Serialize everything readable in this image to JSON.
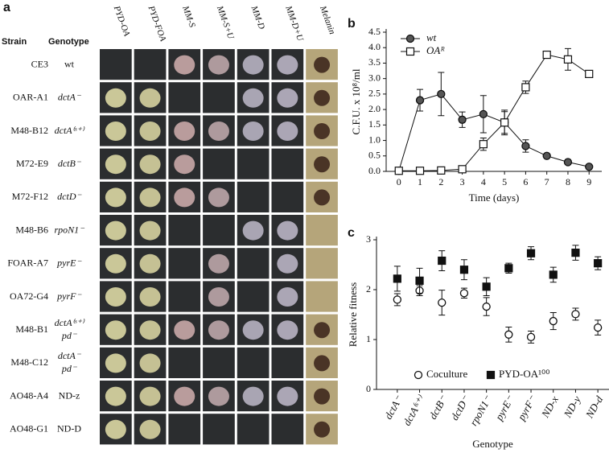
{
  "panel_a": {
    "label": "a",
    "header": {
      "strain": "Strain",
      "genotype": "Genotype"
    },
    "columns": [
      "PYD-OA",
      "PYD-FOA",
      "MM-S",
      "MM-S+U",
      "MM-D",
      "MM-D+U",
      "Melanin"
    ],
    "rows": [
      {
        "strain": "CE3",
        "genotype": [
          "wt"
        ]
      },
      {
        "strain": "OAR-A1",
        "genotype": [
          "dctA⁻"
        ]
      },
      {
        "strain": "M48-B12",
        "genotype": [
          "dctA⁽ˢ⁺⁾"
        ]
      },
      {
        "strain": "M72-E9",
        "genotype": [
          "dctB⁻"
        ]
      },
      {
        "strain": "M72-F12",
        "genotype": [
          "dctD⁻"
        ]
      },
      {
        "strain": "M48-B6",
        "genotype": [
          "rpoN1⁻"
        ]
      },
      {
        "strain": "FOAR-A7",
        "genotype": [
          "pyrE⁻"
        ]
      },
      {
        "strain": "OA72-G4",
        "genotype": [
          "pyrF⁻"
        ]
      },
      {
        "strain": "M48-B1",
        "genotype": [
          "dctA⁽ˢ⁺⁾",
          "pd⁻"
        ]
      },
      {
        "strain": "M48-C12",
        "genotype": [
          "dctA⁻",
          "pd⁻"
        ]
      },
      {
        "strain": "AO48-A4",
        "genotype": [
          "ND-z"
        ]
      },
      {
        "strain": "AO48-G1",
        "genotype": [
          "ND-D"
        ]
      }
    ]
  },
  "chart_data": [
    {
      "type": "line",
      "label": "b",
      "ylabel": "C.F.U. x 10⁸/ml",
      "xlabel": "Time (days)",
      "x": [
        0,
        1,
        2,
        3,
        4,
        5,
        6,
        7,
        8,
        9
      ],
      "xlim": [
        -0.6,
        9.6
      ],
      "xticks": [
        0,
        1,
        2,
        3,
        4,
        5,
        6,
        7,
        8,
        9
      ],
      "ylim": [
        0,
        4.5
      ],
      "yticks": [
        {
          "value": 0,
          "label": "0.0"
        },
        0.5,
        {
          "value": 1,
          "label": "1.0"
        },
        1.5,
        {
          "value": 2,
          "label": "2.0"
        },
        2.5,
        {
          "value": 3,
          "label": "3.0"
        },
        3.5,
        {
          "value": 4,
          "label": "4.0"
        },
        4.5
      ],
      "series": [
        {
          "name": "wt",
          "color": "#555555",
          "marker": "circle",
          "values": [
            0.02,
            2.3,
            2.5,
            1.67,
            1.85,
            1.58,
            0.82,
            0.5,
            0.3,
            0.15
          ],
          "errors": [
            0,
            0.35,
            0.7,
            0.25,
            0.6,
            0.35,
            0.2,
            0.05,
            0.08,
            0.05
          ]
        },
        {
          "name": "OAᴿ",
          "color": "#ffffff",
          "marker": "square",
          "values": [
            0.02,
            0.02,
            0.03,
            0.07,
            0.88,
            1.58,
            2.72,
            3.77,
            3.62,
            3.15
          ],
          "errors": [
            0,
            0,
            0,
            0.05,
            0.2,
            0.4,
            0.2,
            0.05,
            0.35,
            0.1
          ]
        }
      ]
    },
    {
      "type": "scatter",
      "label": "c",
      "ylabel": "Relative fitness",
      "xlabel": "Genotype",
      "categories": [
        "dctA⁻",
        "dctA⁽ˢ⁺⁾",
        "dctB⁻",
        "dctD⁻",
        "rpoN1⁻",
        "pyrE⁻",
        "pyrF⁻",
        "ND-x",
        "ND-y",
        "ND-d"
      ],
      "ylim": [
        0,
        3
      ],
      "yticks": [
        0,
        1,
        2,
        3
      ],
      "series": [
        {
          "name": "Coculture",
          "color": "#ffffff",
          "marker": "circle",
          "values": [
            1.8,
            1.98,
            1.74,
            1.93,
            1.66,
            1.1,
            1.05,
            1.37,
            1.51,
            1.24
          ],
          "errors": [
            0.12,
            0.1,
            0.25,
            0.1,
            0.18,
            0.15,
            0.12,
            0.17,
            0.12,
            0.15
          ]
        },
        {
          "name": "PYD-OA¹⁰⁰",
          "color": "#111111",
          "marker": "square",
          "values": [
            2.22,
            2.18,
            2.58,
            2.4,
            2.06,
            2.43,
            2.73,
            2.3,
            2.74,
            2.53
          ],
          "errors": [
            0.25,
            0.25,
            0.2,
            0.2,
            0.18,
            0.1,
            0.13,
            0.15,
            0.15,
            0.13
          ]
        }
      ]
    }
  ]
}
